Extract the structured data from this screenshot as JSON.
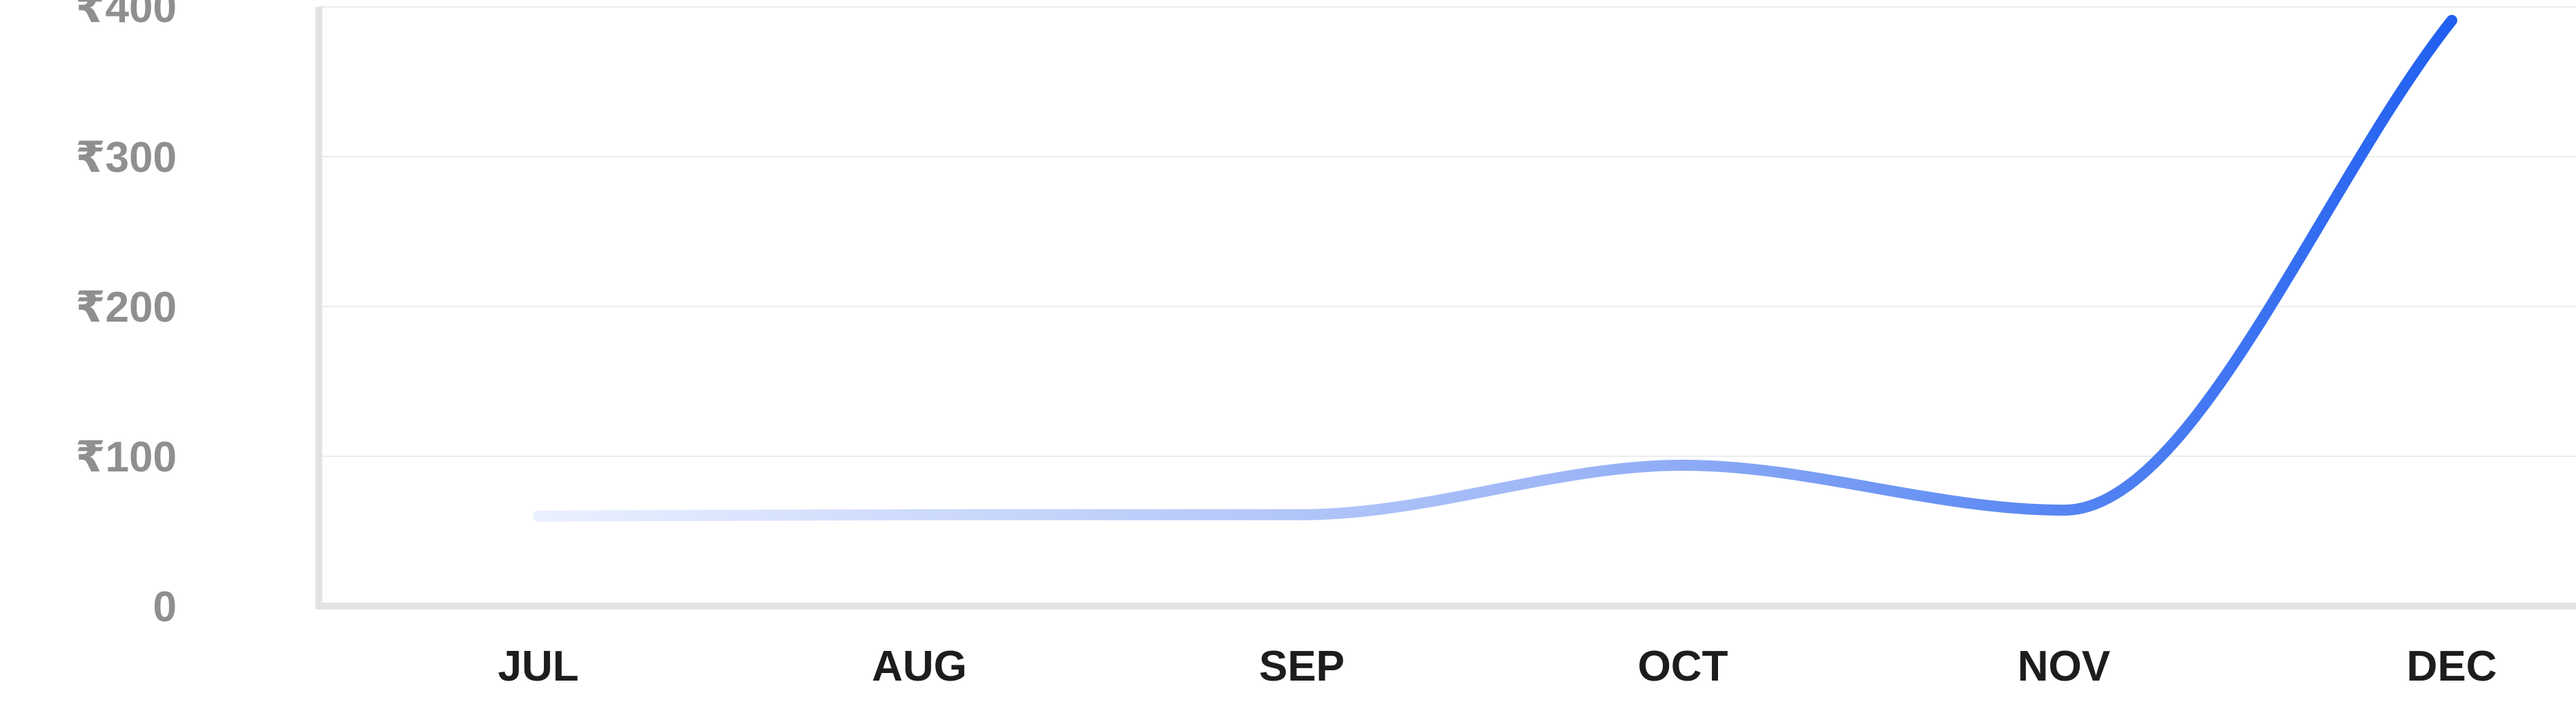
{
  "chart_data": {
    "type": "line",
    "title": "",
    "xlabel": "",
    "ylabel": "",
    "categories": [
      "JUL",
      "AUG",
      "SEP",
      "OCT",
      "NOV",
      "DEC"
    ],
    "series": [
      {
        "values": [
          60,
          61,
          61,
          94,
          64,
          391
        ]
      }
    ],
    "ylim": [
      0,
      400
    ],
    "yticks": [
      {
        "value": 0,
        "label": "0"
      },
      {
        "value": 100,
        "label": "₹100"
      },
      {
        "value": 200,
        "label": "₹200"
      },
      {
        "value": 300,
        "label": "₹300"
      },
      {
        "value": 400,
        "label": "₹400"
      }
    ],
    "grid": true,
    "legend": "none",
    "colors": {
      "line_start": "#eef3ff",
      "line_mid": "#9db6f6",
      "line_end": "#1f5ff0",
      "grid": "#ececec",
      "axis": "#e3e3e3",
      "ytick_text": "#8f8f8f",
      "xtick_text": "#1d1d1f"
    }
  }
}
